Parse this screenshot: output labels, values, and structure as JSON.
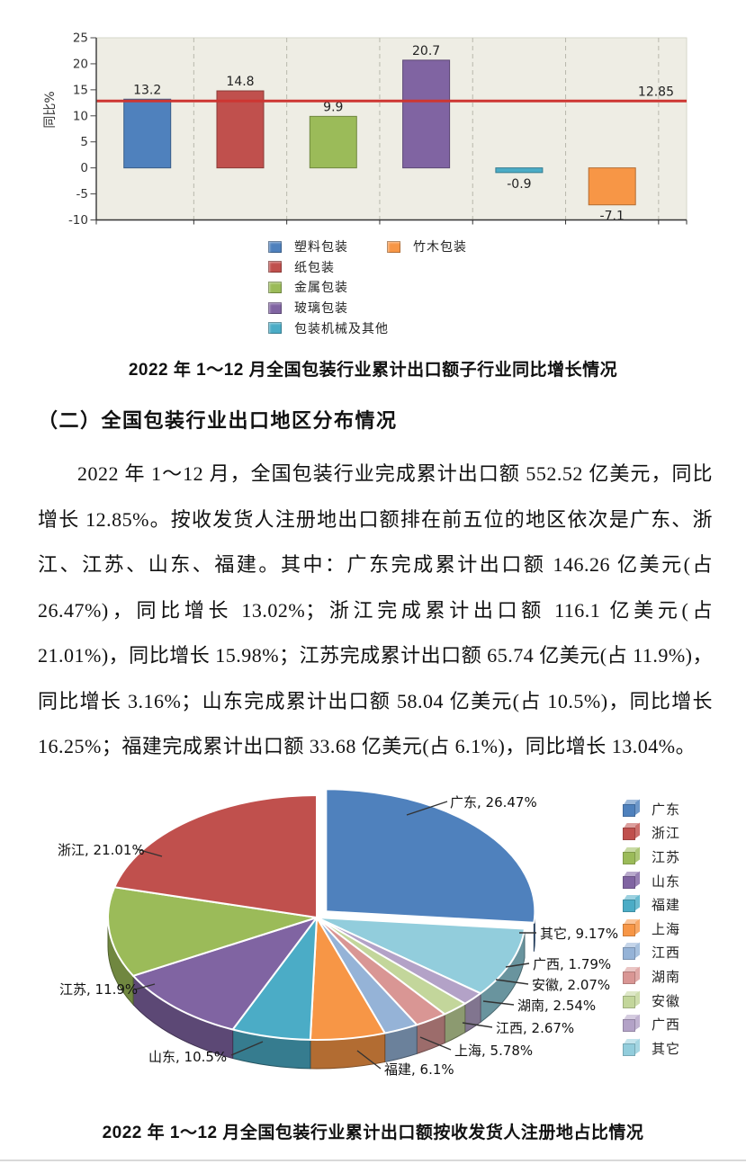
{
  "texts": {
    "section_heading": "（二）全国包装行业出口地区分布情况",
    "paragraph": "2022 年 1～12 月，全国包装行业完成累计出口额 552.52 亿美元，同比增长 12.85%。按收发货人注册地出口额排在前五位的地区依次是广东、浙江、江苏、山东、福建。其中：广东完成累计出口额 146.26 亿美元(占 26.47%)，同比增长 13.02%；浙江完成累计出口额 116.1 亿美元(占 21.01%)，同比增长 15.98%；江苏完成累计出口额 65.74 亿美元(占 11.9%)，同比增长 3.16%；山东完成累计出口额 58.04 亿美元(占 10.5%)，同比增长 16.25%；福建完成累计出口额 33.68 亿美元(占 6.1%)，同比增长 13.04%。"
  },
  "chart_data": [
    {
      "type": "bar",
      "title": "2022 年 1～12 月全国包装行业累计出口额子行业同比增长情况",
      "ylabel": "同比%",
      "ylim": [
        -10,
        25
      ],
      "yticks": [
        25,
        20,
        15,
        10,
        5,
        0,
        -5,
        -10
      ],
      "grid": "vertical-dashed",
      "plot_background": "#eeede4",
      "categories": [
        "塑料包装",
        "纸包装",
        "金属包装",
        "玻璃包装",
        "包装机械及其他",
        "竹木包装"
      ],
      "values": [
        13.2,
        14.8,
        9.9,
        20.7,
        -0.9,
        -7.1
      ],
      "value_labels": [
        "13.2",
        "14.8",
        "9.9",
        "20.7",
        "-0.9",
        "-7.1"
      ],
      "colors": [
        "#4f81bd",
        "#c0504d",
        "#9bbb59",
        "#8064a2",
        "#4bacc6",
        "#f79646"
      ],
      "reference_line": {
        "value": 12.85,
        "label": "12.85",
        "color": "#cd3632"
      },
      "legend_columns": [
        [
          "塑料包装",
          "纸包装",
          "金属包装",
          "玻璃包装",
          "包装机械及其他"
        ],
        [
          "竹木包装"
        ]
      ],
      "legend_position": "bottom"
    },
    {
      "type": "pie",
      "style": "3d-exploded",
      "title": "2022 年 1～12 月全国包装行业累计出口额按收发货人注册地占比情况",
      "unit": "%",
      "slices_clockwise_from_top": [
        {
          "name": "广东",
          "value": 26.47,
          "label": "广东, 26.47%",
          "color": "#4f81bd",
          "exploded": true
        },
        {
          "name": "其它",
          "value": 9.17,
          "label": "其它, 9.17%",
          "color": "#92cddc",
          "exploded": false
        },
        {
          "name": "广西",
          "value": 1.79,
          "label": "广西, 1.79%",
          "color": "#b3a2c7",
          "exploded": false
        },
        {
          "name": "安徽",
          "value": 2.07,
          "label": "安徽, 2.07%",
          "color": "#c3d69b",
          "exploded": false
        },
        {
          "name": "湖南",
          "value": 2.54,
          "label": "湖南, 2.54%",
          "color": "#d99694",
          "exploded": false
        },
        {
          "name": "江西",
          "value": 2.67,
          "label": "江西, 2.67%",
          "color": "#95b3d7",
          "exploded": false
        },
        {
          "name": "上海",
          "value": 5.78,
          "label": "上海, 5.78%",
          "color": "#f79646",
          "exploded": false
        },
        {
          "name": "福建",
          "value": 6.1,
          "label": "福建, 6.1%",
          "color": "#4bacc6",
          "exploded": false
        },
        {
          "name": "山东",
          "value": 10.5,
          "label": "山东, 10.5%",
          "color": "#8064a2",
          "exploded": false
        },
        {
          "name": "江苏",
          "value": 11.9,
          "label": "江苏, 11.9%",
          "color": "#9bbb59",
          "exploded": false
        },
        {
          "name": "浙江",
          "value": 21.01,
          "label": "浙江, 21.01%",
          "color": "#c0504d",
          "exploded": false
        }
      ],
      "legend_order": [
        "广东",
        "浙江",
        "江苏",
        "山东",
        "福建",
        "上海",
        "江西",
        "湖南",
        "安徽",
        "广西",
        "其它"
      ],
      "legend_position": "right"
    }
  ]
}
